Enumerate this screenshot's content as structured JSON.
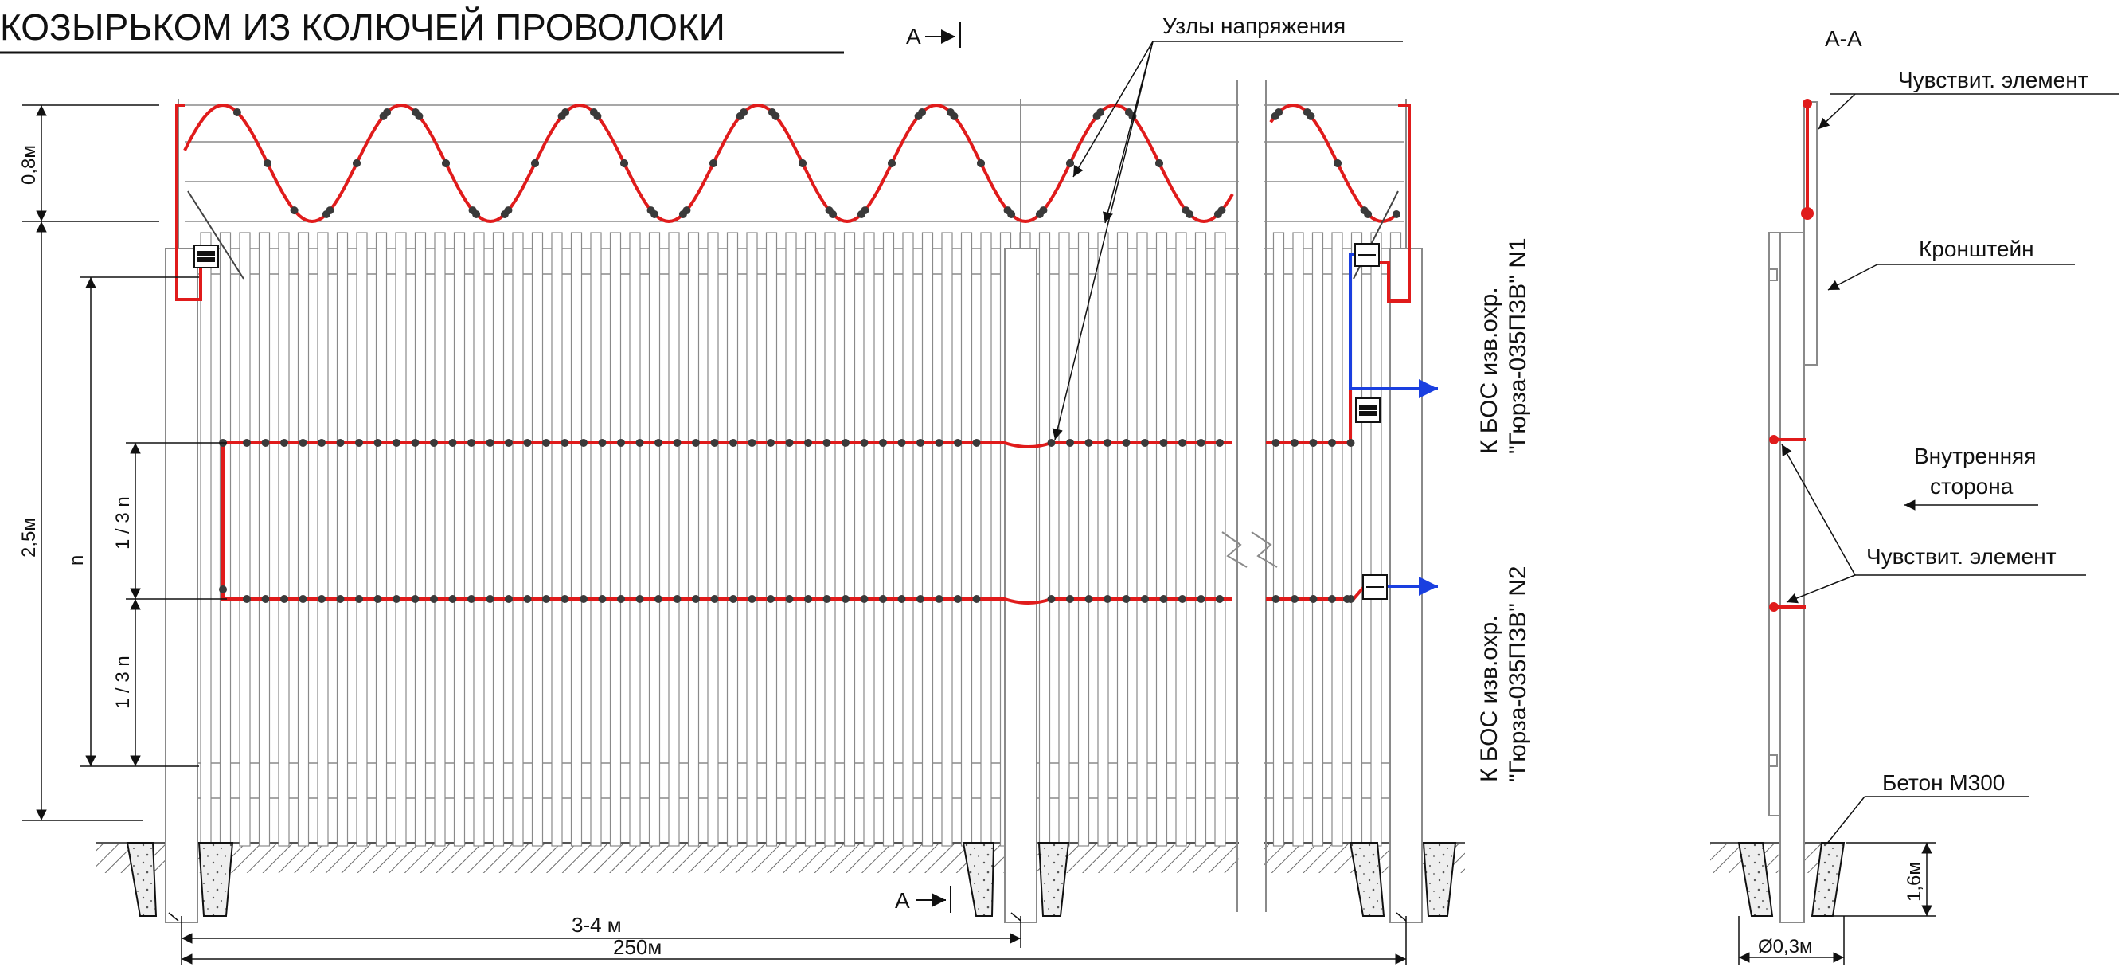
{
  "title": "КОЗЫРЬКОМ ИЗ КОЛЮЧЕЙ ПРОВОЛОКИ",
  "section_mark": "А",
  "labels": {
    "stress_nodes": "Узлы напряжения",
    "bos1_line1": "К БОС изв.охр.",
    "bos1_line2": "\"Гюрза-035ПЗВ\" N1",
    "bos2_line1": "К БОС изв.охр.",
    "bos2_line2": "\"Гюрза-035ПЗВ\" N2"
  },
  "dimensions": {
    "top_height": "0,8м",
    "total_height": "2,5м",
    "n": "n",
    "third_upper": "1 / 3  n",
    "third_lower": "1 / 3  n",
    "post_spacing": "3-4 м",
    "total_length": "250м"
  },
  "section": {
    "title": "А-А",
    "sensor_top": "Чувствит. элемент",
    "bracket": "Кронштейн",
    "inner_line1": "Внутренняя",
    "inner_line2": "сторона",
    "sensor_mid": "Чувствит. элемент",
    "concrete": "Бетон М300",
    "depth": "1,6м",
    "diameter": "Ø0,3м"
  },
  "colors": {
    "sensor": "#e01b1b",
    "cable": "#1a3fe0",
    "node": "#3a3a3a",
    "line": "#8a8a8a"
  }
}
